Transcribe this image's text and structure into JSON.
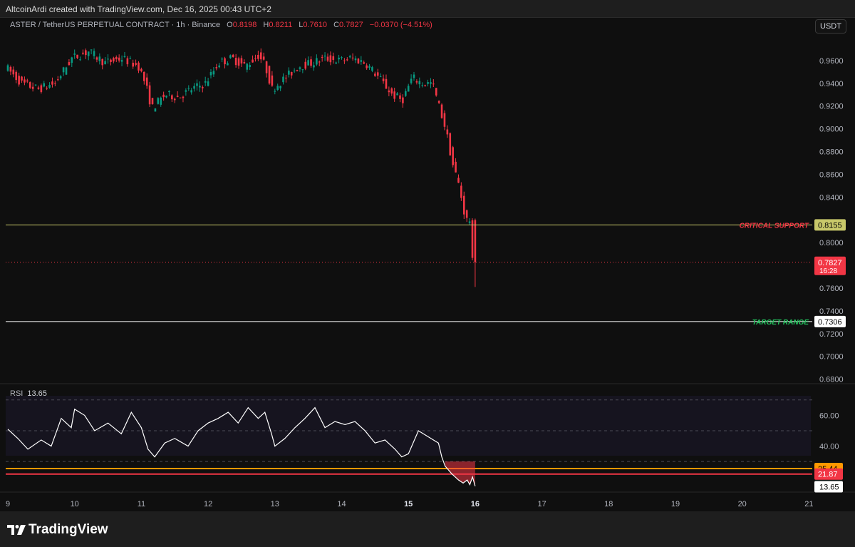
{
  "header": {
    "attribution": "AltcoinArdi created with TradingView.com, Dec 16, 2025 00:43 UTC+2"
  },
  "legend": {
    "symbol": "ASTER / TetherUS PERPETUAL CONTRACT · 1h · Binance",
    "o_label": "O",
    "o": "0.8198",
    "h_label": "H",
    "h": "0.8211",
    "l_label": "L",
    "l": "0.7610",
    "c_label": "C",
    "c": "0.7827",
    "change": "−0.0370 (−4.51%)"
  },
  "currency_button": "USDT",
  "rsi_panel": {
    "label": "RSI",
    "value": "13.65"
  },
  "brand": "TradingView",
  "chart_data": [
    {
      "type": "candlestick",
      "symbol": "ASTER/USDT",
      "timeframe": "1h",
      "x_ticks": [
        "9",
        "10",
        "11",
        "12",
        "13",
        "14",
        "15",
        "16",
        "17",
        "18",
        "19",
        "20",
        "21"
      ],
      "price_ticks": [
        "0.9600",
        "0.9400",
        "0.9200",
        "0.9000",
        "0.8800",
        "0.8600",
        "0.8400",
        "0.8000",
        "0.7600",
        "0.7400",
        "0.7200",
        "0.7000",
        "0.6800"
      ],
      "ylim": [
        0.676,
        0.985
      ],
      "x_range_days": [
        9,
        21.05
      ],
      "price_points": [
        [
          9.0,
          0.955
        ],
        [
          9.25,
          0.94
        ],
        [
          9.5,
          0.935
        ],
        [
          9.75,
          0.94
        ],
        [
          10.0,
          0.962
        ],
        [
          10.25,
          0.968
        ],
        [
          10.5,
          0.958
        ],
        [
          10.75,
          0.962
        ],
        [
          11.0,
          0.955
        ],
        [
          11.1,
          0.94
        ],
        [
          11.2,
          0.918
        ],
        [
          11.4,
          0.93
        ],
        [
          11.6,
          0.928
        ],
        [
          11.8,
          0.935
        ],
        [
          12.0,
          0.94
        ],
        [
          12.2,
          0.958
        ],
        [
          12.4,
          0.962
        ],
        [
          12.6,
          0.955
        ],
        [
          12.8,
          0.965
        ],
        [
          12.9,
          0.955
        ],
        [
          13.0,
          0.935
        ],
        [
          13.2,
          0.945
        ],
        [
          13.4,
          0.955
        ],
        [
          13.6,
          0.958
        ],
        [
          13.8,
          0.962
        ],
        [
          14.0,
          0.96
        ],
        [
          14.2,
          0.962
        ],
        [
          14.4,
          0.958
        ],
        [
          14.6,
          0.945
        ],
        [
          14.8,
          0.93
        ],
        [
          14.95,
          0.925
        ],
        [
          15.1,
          0.945
        ],
        [
          15.25,
          0.94
        ],
        [
          15.4,
          0.94
        ],
        [
          15.5,
          0.92
        ],
        [
          15.6,
          0.9
        ],
        [
          15.7,
          0.87
        ],
        [
          15.8,
          0.85
        ],
        [
          15.9,
          0.82
        ],
        [
          15.98,
          0.8198
        ],
        [
          16.0,
          0.7827
        ]
      ],
      "last": {
        "open": 0.8198,
        "high": 0.8211,
        "low": 0.761,
        "close": 0.7827,
        "countdown": "16:28"
      },
      "levels": [
        {
          "name": "CRITICAL SUPPORT",
          "value": "0.8155",
          "color": "#c8c86a",
          "label_color": "#f23645"
        },
        {
          "name": "TARGET RANGE",
          "value": "0.7306",
          "color": "#ffffff",
          "label_color": "#22c55e"
        }
      ],
      "last_price_color": "#f23645",
      "up_color": "#089981",
      "down_color": "#f23645"
    },
    {
      "type": "line",
      "name": "RSI",
      "y_ticks": [
        "60.00",
        "40.00"
      ],
      "ylim": [
        12,
        75
      ],
      "levels": [
        {
          "value": "25.44",
          "color": "#ff9800"
        },
        {
          "value": "21.87",
          "color": "#f23645"
        }
      ],
      "current": "13.65",
      "points": [
        [
          9.0,
          51
        ],
        [
          9.15,
          45
        ],
        [
          9.3,
          38
        ],
        [
          9.5,
          44
        ],
        [
          9.65,
          40
        ],
        [
          9.8,
          58
        ],
        [
          9.95,
          52
        ],
        [
          10.0,
          64
        ],
        [
          10.15,
          60
        ],
        [
          10.3,
          50
        ],
        [
          10.5,
          55
        ],
        [
          10.7,
          48
        ],
        [
          10.85,
          62
        ],
        [
          11.0,
          52
        ],
        [
          11.1,
          38
        ],
        [
          11.2,
          33
        ],
        [
          11.35,
          42
        ],
        [
          11.5,
          45
        ],
        [
          11.7,
          40
        ],
        [
          11.85,
          50
        ],
        [
          12.0,
          55
        ],
        [
          12.15,
          58
        ],
        [
          12.3,
          62
        ],
        [
          12.45,
          55
        ],
        [
          12.6,
          65
        ],
        [
          12.75,
          58
        ],
        [
          12.85,
          62
        ],
        [
          12.95,
          48
        ],
        [
          13.0,
          40
        ],
        [
          13.15,
          45
        ],
        [
          13.3,
          52
        ],
        [
          13.45,
          58
        ],
        [
          13.6,
          65
        ],
        [
          13.75,
          52
        ],
        [
          13.9,
          56
        ],
        [
          14.05,
          54
        ],
        [
          14.2,
          56
        ],
        [
          14.35,
          50
        ],
        [
          14.5,
          42
        ],
        [
          14.65,
          44
        ],
        [
          14.8,
          38
        ],
        [
          14.9,
          33
        ],
        [
          15.0,
          35
        ],
        [
          15.15,
          50
        ],
        [
          15.3,
          46
        ],
        [
          15.45,
          42
        ],
        [
          15.5,
          33
        ],
        [
          15.55,
          27
        ],
        [
          15.65,
          22
        ],
        [
          15.75,
          18
        ],
        [
          15.82,
          16
        ],
        [
          15.88,
          18
        ],
        [
          15.92,
          15
        ],
        [
          15.96,
          20
        ],
        [
          16.0,
          14
        ]
      ]
    }
  ]
}
